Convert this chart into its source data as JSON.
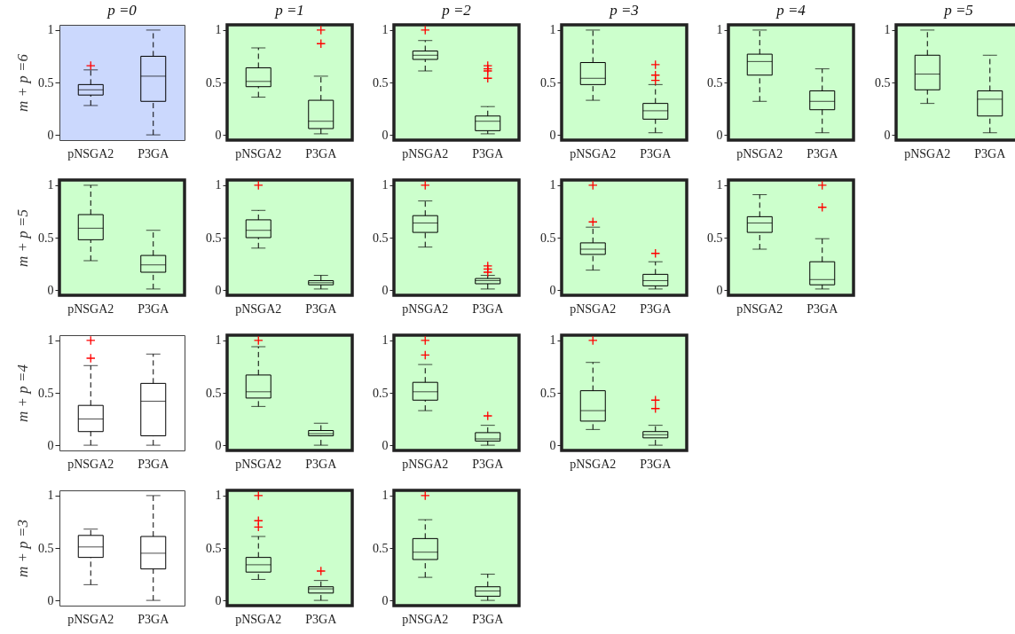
{
  "chart_data": [
    {
      "type": "box",
      "title": "p =0",
      "ylabel": "m + p =6",
      "categories": [
        "pNSGA2",
        "P3GA"
      ],
      "ylim": [
        -0.05,
        1.05
      ],
      "yticks": [
        0,
        0.5,
        1
      ],
      "boxes": [
        {
          "low": 0.28,
          "q1": 0.38,
          "median": 0.43,
          "q3": 0.48,
          "high": 0.62,
          "outliers": [
            0.66
          ]
        },
        {
          "low": 0.0,
          "q1": 0.32,
          "median": 0.56,
          "q3": 0.75,
          "high": 1.0
        }
      ]
    },
    {
      "type": "box",
      "title": "p =1",
      "categories": [
        "pNSGA2",
        "P3GA"
      ],
      "ylim": [
        -0.05,
        1.05
      ],
      "yticks": [
        0,
        0.5,
        1
      ],
      "boxes": [
        {
          "low": 0.36,
          "q1": 0.46,
          "median": 0.51,
          "q3": 0.64,
          "high": 0.83
        },
        {
          "low": 0.01,
          "q1": 0.06,
          "median": 0.13,
          "q3": 0.33,
          "high": 0.56,
          "outliers": [
            1.0,
            0.87
          ]
        }
      ]
    },
    {
      "type": "box",
      "title": "p =2",
      "categories": [
        "pNSGA2",
        "P3GA"
      ],
      "ylim": [
        -0.05,
        1.05
      ],
      "yticks": [
        0,
        0.5,
        1
      ],
      "boxes": [
        {
          "low": 0.61,
          "q1": 0.72,
          "median": 0.76,
          "q3": 0.8,
          "high": 0.9,
          "outliers": [
            1.0
          ]
        },
        {
          "low": 0.01,
          "q1": 0.04,
          "median": 0.13,
          "q3": 0.18,
          "high": 0.27,
          "outliers": [
            0.66,
            0.63,
            0.61,
            0.54
          ]
        }
      ]
    },
    {
      "type": "box",
      "title": "p =3",
      "categories": [
        "pNSGA2",
        "P3GA"
      ],
      "ylim": [
        -0.05,
        1.05
      ],
      "yticks": [
        0,
        0.5,
        1
      ],
      "boxes": [
        {
          "low": 0.33,
          "q1": 0.48,
          "median": 0.54,
          "q3": 0.69,
          "high": 1.0
        },
        {
          "low": 0.02,
          "q1": 0.15,
          "median": 0.23,
          "q3": 0.3,
          "high": 0.48,
          "outliers": [
            0.67,
            0.57,
            0.52
          ]
        }
      ]
    },
    {
      "type": "box",
      "title": "p =4",
      "categories": [
        "pNSGA2",
        "P3GA"
      ],
      "ylim": [
        -0.05,
        1.05
      ],
      "yticks": [
        0,
        0.5,
        1
      ],
      "boxes": [
        {
          "low": 0.32,
          "q1": 0.57,
          "median": 0.7,
          "q3": 0.77,
          "high": 1.0
        },
        {
          "low": 0.02,
          "q1": 0.24,
          "median": 0.32,
          "q3": 0.42,
          "high": 0.63
        }
      ]
    },
    {
      "type": "box",
      "title": "p =5",
      "categories": [
        "pNSGA2",
        "P3GA"
      ],
      "ylim": [
        -0.05,
        1.05
      ],
      "yticks": [
        0,
        0.5,
        1
      ],
      "boxes": [
        {
          "low": 0.3,
          "q1": 0.43,
          "median": 0.58,
          "q3": 0.76,
          "high": 1.0
        },
        {
          "low": 0.02,
          "q1": 0.18,
          "median": 0.34,
          "q3": 0.42,
          "high": 0.76
        }
      ]
    },
    {
      "type": "box",
      "ylabel": "m + p =5",
      "categories": [
        "pNSGA2",
        "P3GA"
      ],
      "ylim": [
        -0.05,
        1.05
      ],
      "yticks": [
        0,
        0.5,
        1
      ],
      "boxes": [
        {
          "low": 0.28,
          "q1": 0.48,
          "median": 0.59,
          "q3": 0.72,
          "high": 1.0
        },
        {
          "low": 0.01,
          "q1": 0.17,
          "median": 0.24,
          "q3": 0.33,
          "high": 0.57
        }
      ]
    },
    {
      "type": "box",
      "categories": [
        "pNSGA2",
        "P3GA"
      ],
      "ylim": [
        -0.05,
        1.05
      ],
      "yticks": [
        0,
        0.5,
        1
      ],
      "boxes": [
        {
          "low": 0.4,
          "q1": 0.5,
          "median": 0.57,
          "q3": 0.67,
          "high": 0.76,
          "outliers": [
            1.0
          ]
        },
        {
          "low": 0.01,
          "q1": 0.05,
          "median": 0.07,
          "q3": 0.09,
          "high": 0.14
        }
      ]
    },
    {
      "type": "box",
      "categories": [
        "pNSGA2",
        "P3GA"
      ],
      "ylim": [
        -0.05,
        1.05
      ],
      "yticks": [
        0,
        0.5,
        1
      ],
      "boxes": [
        {
          "low": 0.41,
          "q1": 0.55,
          "median": 0.64,
          "q3": 0.71,
          "high": 0.85,
          "outliers": [
            1.0
          ]
        },
        {
          "low": 0.01,
          "q1": 0.06,
          "median": 0.09,
          "q3": 0.11,
          "high": 0.14,
          "outliers": [
            0.23,
            0.2,
            0.17
          ]
        }
      ]
    },
    {
      "type": "box",
      "categories": [
        "pNSGA2",
        "P3GA"
      ],
      "ylim": [
        -0.05,
        1.05
      ],
      "yticks": [
        0,
        0.5,
        1
      ],
      "boxes": [
        {
          "low": 0.19,
          "q1": 0.34,
          "median": 0.39,
          "q3": 0.45,
          "high": 0.6,
          "outliers": [
            1.0,
            0.65
          ]
        },
        {
          "low": 0.01,
          "q1": 0.04,
          "median": 0.09,
          "q3": 0.15,
          "high": 0.27,
          "outliers": [
            0.35
          ]
        }
      ]
    },
    {
      "type": "box",
      "categories": [
        "pNSGA2",
        "P3GA"
      ],
      "ylim": [
        -0.05,
        1.05
      ],
      "yticks": [
        0,
        0.5,
        1
      ],
      "boxes": [
        {
          "low": 0.39,
          "q1": 0.55,
          "median": 0.64,
          "q3": 0.7,
          "high": 0.91
        },
        {
          "low": 0.01,
          "q1": 0.05,
          "median": 0.1,
          "q3": 0.27,
          "high": 0.49,
          "outliers": [
            1.0,
            0.79
          ]
        }
      ]
    },
    {
      "type": "box",
      "ylabel": "m + p =4",
      "categories": [
        "pNSGA2",
        "P3GA"
      ],
      "ylim": [
        -0.05,
        1.05
      ],
      "yticks": [
        0,
        0.5,
        1
      ],
      "boxes": [
        {
          "low": 0.0,
          "q1": 0.13,
          "median": 0.25,
          "q3": 0.38,
          "high": 0.76,
          "outliers": [
            1.0,
            0.83
          ]
        },
        {
          "low": 0.0,
          "q1": 0.09,
          "median": 0.42,
          "q3": 0.59,
          "high": 0.87
        }
      ]
    },
    {
      "type": "box",
      "categories": [
        "pNSGA2",
        "P3GA"
      ],
      "ylim": [
        -0.05,
        1.05
      ],
      "yticks": [
        0,
        0.5,
        1
      ],
      "boxes": [
        {
          "low": 0.37,
          "q1": 0.45,
          "median": 0.51,
          "q3": 0.67,
          "high": 0.94,
          "outliers": [
            1.0
          ]
        },
        {
          "low": 0.0,
          "q1": 0.09,
          "median": 0.11,
          "q3": 0.14,
          "high": 0.21
        }
      ]
    },
    {
      "type": "box",
      "categories": [
        "pNSGA2",
        "P3GA"
      ],
      "ylim": [
        -0.05,
        1.05
      ],
      "yticks": [
        0,
        0.5,
        1
      ],
      "boxes": [
        {
          "low": 0.33,
          "q1": 0.43,
          "median": 0.51,
          "q3": 0.6,
          "high": 0.77,
          "outliers": [
            1.0,
            0.86
          ]
        },
        {
          "low": 0.0,
          "q1": 0.04,
          "median": 0.06,
          "q3": 0.12,
          "high": 0.19,
          "outliers": [
            0.28
          ]
        }
      ]
    },
    {
      "type": "box",
      "categories": [
        "pNSGA2",
        "P3GA"
      ],
      "ylim": [
        -0.05,
        1.05
      ],
      "yticks": [
        0,
        0.5,
        1
      ],
      "boxes": [
        {
          "low": 0.15,
          "q1": 0.23,
          "median": 0.33,
          "q3": 0.52,
          "high": 0.79,
          "outliers": [
            1.0
          ]
        },
        {
          "low": 0.0,
          "q1": 0.07,
          "median": 0.1,
          "q3": 0.13,
          "high": 0.19,
          "outliers": [
            0.43,
            0.35
          ]
        }
      ]
    },
    {
      "type": "box",
      "ylabel": "m + p =3",
      "categories": [
        "pNSGA2",
        "P3GA"
      ],
      "ylim": [
        -0.05,
        1.05
      ],
      "yticks": [
        0,
        0.5,
        1
      ],
      "boxes": [
        {
          "low": 0.15,
          "q1": 0.41,
          "median": 0.51,
          "q3": 0.62,
          "high": 0.68
        },
        {
          "low": 0.0,
          "q1": 0.3,
          "median": 0.45,
          "q3": 0.61,
          "high": 1.0
        }
      ]
    },
    {
      "type": "box",
      "categories": [
        "pNSGA2",
        "P3GA"
      ],
      "ylim": [
        -0.05,
        1.05
      ],
      "yticks": [
        0,
        0.5,
        1
      ],
      "boxes": [
        {
          "low": 0.2,
          "q1": 0.27,
          "median": 0.34,
          "q3": 0.41,
          "high": 0.61,
          "outliers": [
            1.0,
            0.76,
            0.7
          ]
        },
        {
          "low": 0.0,
          "q1": 0.07,
          "median": 0.11,
          "q3": 0.13,
          "high": 0.19,
          "outliers": [
            0.28
          ]
        }
      ]
    },
    {
      "type": "box",
      "categories": [
        "pNSGA2",
        "P3GA"
      ],
      "ylim": [
        -0.05,
        1.05
      ],
      "yticks": [
        0,
        0.5,
        1
      ],
      "boxes": [
        {
          "low": 0.22,
          "q1": 0.39,
          "median": 0.46,
          "q3": 0.59,
          "high": 0.77,
          "outliers": [
            1.0
          ]
        },
        {
          "low": 0.0,
          "q1": 0.04,
          "median": 0.09,
          "q3": 0.13,
          "high": 0.25
        }
      ]
    }
  ]
}
